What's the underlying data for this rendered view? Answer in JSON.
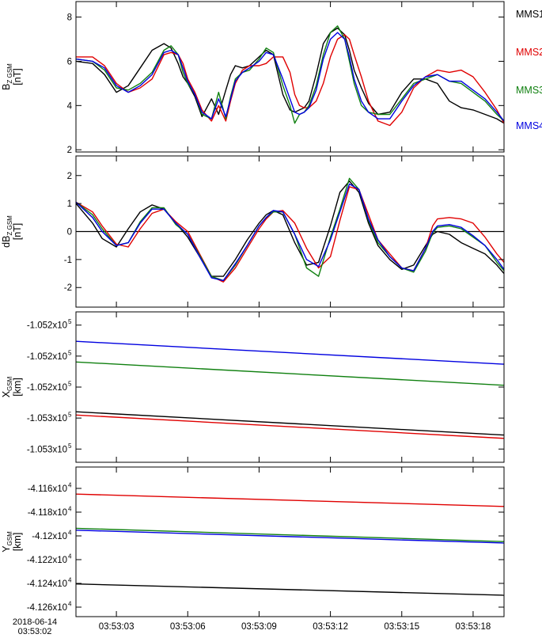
{
  "chart_data": {
    "type": "line",
    "time_axis": {
      "range": [
        "03:53:01.3",
        "03:53:19.3"
      ],
      "tick_labels": [
        "03:53:03",
        "03:53:06",
        "03:53:09",
        "03:53:12",
        "03:53:15",
        "03:53:18"
      ],
      "tick_times": [
        3,
        6,
        9,
        12,
        15,
        18
      ],
      "date_label": "2018-06-14",
      "start_label": "03:53:02"
    },
    "legend": [
      {
        "name": "MMS1",
        "color": "#000000"
      },
      {
        "name": "MMS2",
        "color": "#e00000"
      },
      {
        "name": "MMS3",
        "color": "#108010"
      },
      {
        "name": "MMS4",
        "color": "#0000e0"
      }
    ],
    "panels": [
      {
        "id": "bz",
        "ylabel": "B",
        "ylabel_sub": "Z GSM",
        "yunit": "[nT]",
        "ylim": [
          1.9,
          8.7
        ],
        "yticks": [
          "2",
          "4",
          "6",
          "8"
        ],
        "ytick_values": [
          2,
          4,
          6,
          8
        ],
        "zero_line": false,
        "series": [
          {
            "name": "MMS1",
            "color": "#000000",
            "x": [
              1.3,
              2.0,
              2.5,
              3.0,
              3.5,
              4.0,
              4.5,
              5.0,
              5.3,
              5.6,
              5.8,
              6.0,
              6.3,
              6.6,
              7.0,
              7.3,
              7.6,
              7.8,
              8.0,
              8.3,
              8.6,
              9.0,
              9.3,
              9.6,
              10.0,
              10.3,
              10.5,
              10.7,
              10.9,
              11.1,
              11.4,
              11.7,
              12.0,
              12.3,
              12.6,
              12.8,
              13.0,
              13.3,
              13.6,
              14.0,
              14.5,
              15.0,
              15.5,
              16.0,
              16.5,
              17.0,
              17.5,
              18.0,
              18.5,
              19.0,
              19.3
            ],
            "y": [
              6.0,
              5.9,
              5.4,
              4.6,
              4.9,
              5.7,
              6.5,
              6.8,
              6.6,
              5.9,
              5.3,
              5.0,
              4.4,
              3.5,
              4.3,
              3.6,
              4.7,
              5.4,
              5.8,
              5.7,
              5.8,
              6.2,
              6.5,
              6.3,
              4.5,
              3.8,
              3.7,
              3.8,
              3.9,
              4.2,
              5.4,
              6.8,
              7.3,
              7.5,
              7.2,
              6.5,
              5.6,
              4.8,
              4.1,
              3.6,
              3.7,
              4.6,
              5.2,
              5.2,
              5.0,
              4.2,
              3.9,
              3.8,
              3.6,
              3.4,
              3.2
            ]
          },
          {
            "name": "MMS2",
            "color": "#e00000",
            "x": [
              1.3,
              2.0,
              2.5,
              3.0,
              3.5,
              4.0,
              4.5,
              5.0,
              5.3,
              5.6,
              5.8,
              6.0,
              6.3,
              6.6,
              7.0,
              7.3,
              7.6,
              7.8,
              8.0,
              8.3,
              8.6,
              9.0,
              9.3,
              9.6,
              10.0,
              10.3,
              10.5,
              10.7,
              10.9,
              11.1,
              11.4,
              11.7,
              12.0,
              12.3,
              12.6,
              12.8,
              13.0,
              13.3,
              13.6,
              14.0,
              14.5,
              15.0,
              15.5,
              16.0,
              16.5,
              17.0,
              17.5,
              18.0,
              18.5,
              19.0,
              19.3
            ],
            "y": [
              6.2,
              6.2,
              5.8,
              5.0,
              4.6,
              4.8,
              5.2,
              6.3,
              6.4,
              6.3,
              5.9,
              5.2,
              4.6,
              3.8,
              3.3,
              4.0,
              3.3,
              4.2,
              5.0,
              5.6,
              5.8,
              5.8,
              5.9,
              6.2,
              6.2,
              5.5,
              4.5,
              4.0,
              3.9,
              3.9,
              4.2,
              5.0,
              6.2,
              7.0,
              7.2,
              7.0,
              6.3,
              5.3,
              4.2,
              3.3,
              3.1,
              3.7,
              4.8,
              5.3,
              5.6,
              5.5,
              5.6,
              5.3,
              4.6,
              3.8,
              3.2
            ]
          },
          {
            "name": "MMS3",
            "color": "#108010",
            "x": [
              1.3,
              2.0,
              2.5,
              3.0,
              3.5,
              4.0,
              4.5,
              5.0,
              5.3,
              5.6,
              5.8,
              6.0,
              6.3,
              6.6,
              7.0,
              7.3,
              7.6,
              7.8,
              8.0,
              8.3,
              8.6,
              9.0,
              9.3,
              9.6,
              10.0,
              10.3,
              10.5,
              10.7,
              10.9,
              11.1,
              11.4,
              11.7,
              12.0,
              12.3,
              12.6,
              12.8,
              13.0,
              13.3,
              13.6,
              14.0,
              14.5,
              15.0,
              15.5,
              16.0,
              16.5,
              17.0,
              17.5,
              18.0,
              18.5,
              19.0,
              19.3
            ],
            "y": [
              6.1,
              6.0,
              5.6,
              4.8,
              4.7,
              5.0,
              5.5,
              6.5,
              6.7,
              6.3,
              5.5,
              5.0,
              4.5,
              3.6,
              3.4,
              4.6,
              3.4,
              4.4,
              5.2,
              5.5,
              5.6,
              6.1,
              6.6,
              6.4,
              4.9,
              4.0,
              3.2,
              3.6,
              3.7,
              4.0,
              4.9,
              6.3,
              7.3,
              7.6,
              7.0,
              6.0,
              5.0,
              4.0,
              3.7,
              3.6,
              3.6,
              4.3,
              5.0,
              5.2,
              5.4,
              5.1,
              5.0,
              4.6,
              4.2,
              3.6,
              3.3
            ]
          },
          {
            "name": "MMS4",
            "color": "#0000e0",
            "x": [
              1.3,
              2.0,
              2.5,
              3.0,
              3.5,
              4.0,
              4.5,
              5.0,
              5.3,
              5.6,
              5.8,
              6.0,
              6.3,
              6.6,
              7.0,
              7.3,
              7.6,
              7.8,
              8.0,
              8.3,
              8.6,
              9.0,
              9.3,
              9.6,
              10.0,
              10.3,
              10.5,
              10.7,
              10.9,
              11.1,
              11.4,
              11.7,
              12.0,
              12.3,
              12.6,
              12.8,
              13.0,
              13.3,
              13.6,
              14.0,
              14.5,
              15.0,
              15.5,
              16.0,
              16.5,
              17.0,
              17.5,
              18.0,
              18.5,
              19.0,
              19.3
            ],
            "y": [
              6.1,
              6.0,
              5.7,
              4.9,
              4.6,
              4.9,
              5.4,
              6.4,
              6.5,
              6.3,
              5.7,
              5.1,
              4.5,
              3.7,
              3.4,
              4.3,
              3.5,
              4.3,
              5.1,
              5.5,
              5.7,
              6.0,
              6.4,
              6.3,
              5.2,
              4.3,
              3.7,
              3.6,
              3.7,
              3.9,
              4.7,
              6.1,
              7.0,
              7.3,
              7.0,
              6.2,
              5.2,
              4.2,
              3.7,
              3.4,
              3.4,
              4.2,
              4.9,
              5.3,
              5.4,
              5.1,
              5.1,
              4.7,
              4.3,
              3.7,
              3.3
            ]
          }
        ]
      },
      {
        "id": "dbz",
        "ylabel": "dB",
        "ylabel_sub": "Z GSM",
        "yunit": "[nT]",
        "ylim": [
          -2.7,
          2.7
        ],
        "yticks": [
          "-2",
          "-1",
          "0",
          "1",
          "2"
        ],
        "ytick_values": [
          -2,
          -1,
          0,
          1,
          2
        ],
        "zero_line": true,
        "series": [
          {
            "name": "MMS1",
            "color": "#000000",
            "x": [
              1.3,
              2.0,
              2.4,
              3.0,
              3.5,
              4.0,
              4.5,
              5.0,
              5.5,
              6.0,
              6.5,
              7.0,
              7.5,
              8.0,
              8.5,
              9.0,
              9.3,
              9.6,
              10.0,
              10.5,
              11.0,
              11.5,
              12.0,
              12.4,
              12.8,
              13.2,
              13.6,
              14.0,
              14.5,
              15.0,
              15.5,
              16.0,
              16.3,
              16.5,
              17.0,
              17.5,
              18.0,
              18.5,
              19.0,
              19.3
            ],
            "y": [
              1.0,
              0.3,
              -0.25,
              -0.55,
              0.1,
              0.7,
              0.95,
              0.8,
              0.3,
              -0.2,
              -0.9,
              -1.6,
              -1.6,
              -1.0,
              -0.3,
              0.3,
              0.6,
              0.75,
              0.6,
              -0.4,
              -1.2,
              -1.1,
              0.2,
              1.4,
              1.8,
              1.4,
              0.3,
              -0.5,
              -1.0,
              -1.35,
              -1.2,
              -0.5,
              -0.1,
              0.0,
              -0.1,
              -0.4,
              -0.6,
              -0.8,
              -1.2,
              -1.5
            ]
          },
          {
            "name": "MMS2",
            "color": "#e00000",
            "x": [
              1.3,
              2.0,
              2.4,
              3.0,
              3.5,
              4.0,
              4.5,
              5.0,
              5.5,
              6.0,
              6.5,
              7.0,
              7.5,
              8.0,
              8.5,
              9.0,
              9.3,
              9.6,
              10.0,
              10.5,
              11.0,
              11.5,
              12.0,
              12.4,
              12.8,
              13.2,
              13.6,
              14.0,
              14.5,
              15.0,
              15.5,
              16.0,
              16.3,
              16.5,
              17.0,
              17.5,
              18.0,
              18.5,
              19.0,
              19.3
            ],
            "y": [
              1.05,
              0.7,
              0.2,
              -0.45,
              -0.55,
              0.1,
              0.65,
              0.8,
              0.35,
              0.0,
              -0.8,
              -1.6,
              -1.8,
              -1.3,
              -0.6,
              0.1,
              0.45,
              0.7,
              0.75,
              0.3,
              -0.6,
              -1.3,
              -0.9,
              0.4,
              1.6,
              1.5,
              0.6,
              -0.3,
              -0.8,
              -1.3,
              -1.4,
              -0.6,
              0.2,
              0.45,
              0.5,
              0.45,
              0.3,
              -0.2,
              -0.8,
              -1.1
            ]
          },
          {
            "name": "MMS3",
            "color": "#108010",
            "x": [
              1.3,
              2.0,
              2.4,
              3.0,
              3.5,
              4.0,
              4.5,
              5.0,
              5.5,
              6.0,
              6.5,
              7.0,
              7.5,
              8.0,
              8.5,
              9.0,
              9.3,
              9.6,
              10.0,
              10.5,
              11.0,
              11.5,
              12.0,
              12.4,
              12.8,
              13.2,
              13.6,
              14.0,
              14.5,
              15.0,
              15.5,
              16.0,
              16.3,
              16.5,
              17.0,
              17.5,
              18.0,
              18.5,
              19.0,
              19.3
            ],
            "y": [
              1.05,
              0.6,
              0.1,
              -0.5,
              -0.4,
              0.35,
              0.85,
              0.85,
              0.25,
              -0.1,
              -0.85,
              -1.6,
              -1.75,
              -1.2,
              -0.5,
              0.2,
              0.5,
              0.7,
              0.7,
              -0.1,
              -1.3,
              -1.6,
              -0.2,
              0.8,
              1.9,
              1.5,
              0.4,
              -0.4,
              -0.9,
              -1.3,
              -1.45,
              -0.7,
              -0.05,
              0.15,
              0.2,
              0.1,
              -0.2,
              -0.5,
              -1.1,
              -1.4
            ]
          },
          {
            "name": "MMS4",
            "color": "#0000e0",
            "x": [
              1.3,
              2.0,
              2.4,
              3.0,
              3.5,
              4.0,
              4.5,
              5.0,
              5.5,
              6.0,
              6.5,
              7.0,
              7.5,
              8.0,
              8.5,
              9.0,
              9.3,
              9.6,
              10.0,
              10.5,
              11.0,
              11.5,
              12.0,
              12.4,
              12.8,
              13.2,
              13.6,
              14.0,
              14.5,
              15.0,
              15.5,
              16.0,
              16.3,
              16.5,
              17.0,
              17.5,
              18.0,
              18.5,
              19.0,
              19.3
            ],
            "y": [
              1.05,
              0.5,
              0.0,
              -0.5,
              -0.4,
              0.3,
              0.8,
              0.8,
              0.3,
              -0.1,
              -0.9,
              -1.65,
              -1.75,
              -1.15,
              -0.5,
              0.2,
              0.5,
              0.75,
              0.7,
              -0.1,
              -1.0,
              -1.25,
              -0.3,
              0.7,
              1.7,
              1.5,
              0.45,
              -0.3,
              -0.9,
              -1.3,
              -1.4,
              -0.6,
              0.0,
              0.2,
              0.25,
              0.15,
              -0.15,
              -0.5,
              -1.0,
              -1.35
            ]
          }
        ]
      },
      {
        "id": "xgsm",
        "ylabel": "X",
        "ylabel_sub": "GSM",
        "yunit": "[km]",
        "ylim": [
          0,
          1
        ],
        "yticks": [
          "-1.052x10",
          "-1.052x10",
          "-1.052x10",
          "-1.053x10",
          "-1.053x10"
        ],
        "ytick_exp": "5",
        "ytick_values": [
          0.912,
          0.706,
          0.5,
          0.294,
          0.088
        ],
        "zero_line": false,
        "series": [
          {
            "name": "MMS1",
            "color": "#000000",
            "x": [
              1.3,
              19.3
            ],
            "y": [
              0.336,
              0.181
            ]
          },
          {
            "name": "MMS2",
            "color": "#e00000",
            "x": [
              1.3,
              19.3
            ],
            "y": [
              0.314,
              0.159
            ]
          },
          {
            "name": "MMS3",
            "color": "#108010",
            "x": [
              1.3,
              19.3
            ],
            "y": [
              0.667,
              0.512
            ]
          },
          {
            "name": "MMS4",
            "color": "#0000e0",
            "x": [
              1.3,
              19.3
            ],
            "y": [
              0.804,
              0.652
            ]
          }
        ]
      },
      {
        "id": "ygsm",
        "ylabel": "Y",
        "ylabel_sub": "GSM",
        "yunit": "[km]",
        "ylim": [
          -41.268,
          -41.142
        ],
        "yticks": [
          "-4.116x10",
          "-4.118x10",
          "-4.12x10",
          "-4.122x10",
          "-4.124x10",
          "-4.126x10"
        ],
        "ytick_exp": "4",
        "ytick_values": [
          -41.16,
          -41.18,
          -41.2,
          -41.22,
          -41.24,
          -41.26
        ],
        "zero_line": false,
        "series": [
          {
            "name": "MMS1",
            "color": "#000000",
            "x": [
              1.3,
              19.3
            ],
            "y": [
              -41.2405,
              -41.25
            ]
          },
          {
            "name": "MMS2",
            "color": "#e00000",
            "x": [
              1.3,
              19.3
            ],
            "y": [
              -41.1648,
              -41.1752
            ]
          },
          {
            "name": "MMS3",
            "color": "#108010",
            "x": [
              1.3,
              19.3
            ],
            "y": [
              -41.1936,
              -41.2048
            ]
          },
          {
            "name": "MMS4",
            "color": "#0000e0",
            "x": [
              1.3,
              19.3
            ],
            "y": [
              -41.1952,
              -41.206
            ]
          }
        ]
      }
    ]
  }
}
